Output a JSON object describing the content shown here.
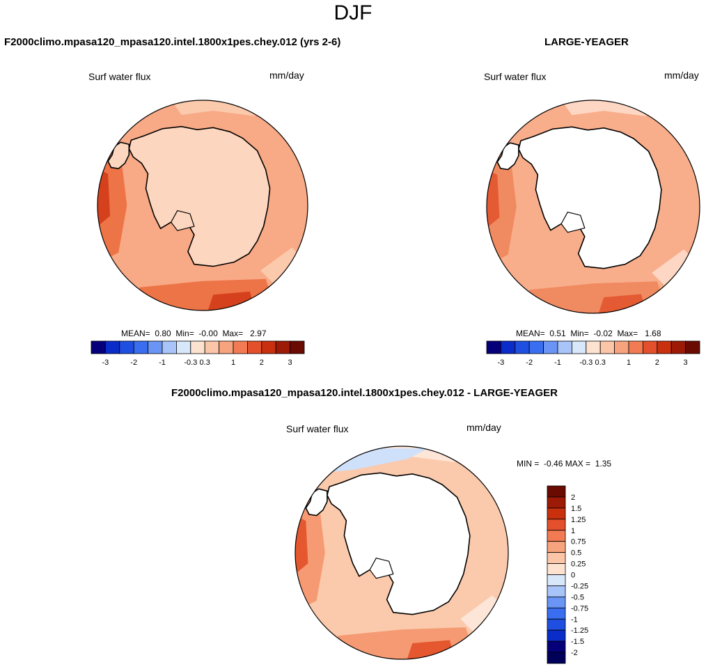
{
  "figure": {
    "season": "DJF",
    "bottom_title": "F2000climo.mpasa120_mpasa120.intel.1800x1pes.chey.012 - LARGE-YEAGER"
  },
  "chart_data": [
    {
      "type": "heatmap",
      "projection": "south-polar stereographic",
      "title": "F2000climo.mpasa120_mpasa120.intel.1800x1pes.chey.012 (yrs 2-6)",
      "variable": "Surf water flux",
      "units": "mm/day",
      "stats": {
        "mean_label": "MEAN=",
        "mean": "0.80",
        "min_label": "Min=",
        "min": "-0.00",
        "max_label": "Max=",
        "max": "2.97"
      },
      "colorbar": {
        "orientation": "horizontal",
        "tick_labels": [
          "-3",
          "-2",
          "-1",
          "-0.3",
          "0.3",
          "1",
          "2",
          "3"
        ],
        "colors": [
          "#05007a",
          "#0a2cc8",
          "#1f4fe0",
          "#3a6ef0",
          "#6a95f5",
          "#a8c4f8",
          "#d8e8fb",
          "#fde2d0",
          "#fbc5a8",
          "#f7a37e",
          "#f27b53",
          "#e4502c",
          "#c8300e",
          "#9c1a06",
          "#6a0b02"
        ]
      },
      "field_colors": {
        "land": "#fcd6bf",
        "ocean_main": "#f8a985",
        "ocean_low": "#fbc9ab",
        "ocean_high": "#ed7447",
        "ocean_peak": "#d6411d"
      }
    },
    {
      "type": "heatmap",
      "projection": "south-polar stereographic",
      "title": "LARGE-YEAGER",
      "variable": "Surf water flux",
      "units": "mm/day",
      "stats": {
        "mean_label": "MEAN=",
        "mean": "0.51",
        "min_label": "Min=",
        "min": "-0.02",
        "max_label": "Max=",
        "max": "1.68"
      },
      "colorbar": {
        "orientation": "horizontal",
        "tick_labels": [
          "-3",
          "-2",
          "-1",
          "-0.3",
          "0.3",
          "1",
          "2",
          "3"
        ],
        "colors": [
          "#05007a",
          "#0a2cc8",
          "#1f4fe0",
          "#3a6ef0",
          "#6a95f5",
          "#a8c4f8",
          "#d8e8fb",
          "#fde2d0",
          "#fbc5a8",
          "#f7a37e",
          "#f27b53",
          "#e4502c",
          "#c8300e",
          "#9c1a06",
          "#6a0b02"
        ]
      },
      "field_colors": {
        "land": "#ffffff",
        "ocean_main": "#f8ad8b",
        "ocean_low": "#fdd7c3",
        "ocean_high": "#f08a60",
        "ocean_peak": "#e45a33"
      }
    },
    {
      "type": "heatmap",
      "projection": "south-polar stereographic",
      "title": "F2000climo.mpasa120_mpasa120.intel.1800x1pes.chey.012 - LARGE-YEAGER",
      "variable": "Surf water flux",
      "units": "mm/day",
      "stats": {
        "min_label": "MIN =",
        "min": "-0.46",
        "max_label": "MAX =",
        "max": "1.35"
      },
      "colorbar": {
        "orientation": "vertical",
        "tick_labels": [
          "2",
          "1.5",
          "1.25",
          "1",
          "0.75",
          "0.5",
          "0.25",
          "0",
          "-0.25",
          "-0.5",
          "-0.75",
          "-1",
          "-1.25",
          "-1.5",
          "-2"
        ],
        "colors": [
          "#6a0b02",
          "#9c1a06",
          "#c8300e",
          "#e4502c",
          "#f27b53",
          "#f7a37e",
          "#fbc5a8",
          "#fde2d0",
          "#d8e8fb",
          "#a8c4f8",
          "#6a95f5",
          "#3a6ef0",
          "#1f4fe0",
          "#0a2cc8",
          "#05007a",
          "#00005a"
        ]
      },
      "field_colors": {
        "land": "#ffffff",
        "ocean_main": "#fbc9ab",
        "ocean_low": "#fde6d8",
        "ocean_high": "#f59a72",
        "ocean_peak": "#e4572f",
        "ocean_neg": "#cfe0fa"
      }
    }
  ]
}
